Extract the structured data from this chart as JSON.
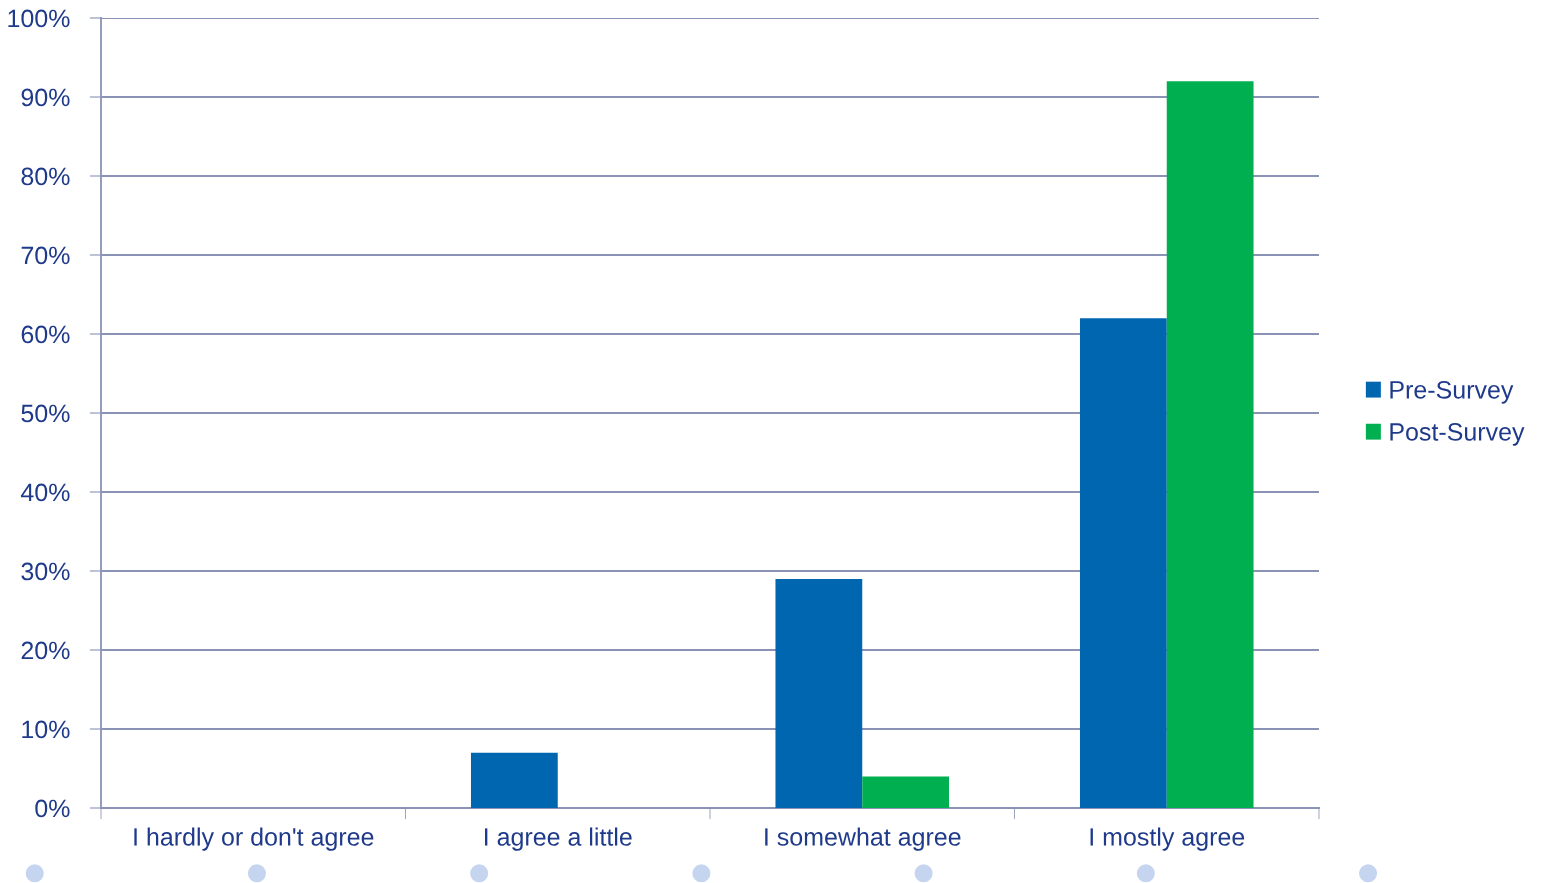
{
  "chart_data": {
    "type": "bar",
    "categories": [
      "I hardly or don't agree",
      "I agree a little",
      "I somewhat agree",
      "I mostly agree"
    ],
    "series": [
      {
        "name": "Pre-Survey",
        "color": "#0066b0",
        "values": [
          0,
          7,
          29,
          62
        ]
      },
      {
        "name": "Post-Survey",
        "color": "#00b050",
        "values": [
          0,
          0,
          4,
          92
        ]
      }
    ],
    "ylim": [
      0,
      100
    ],
    "yticks": [
      {
        "value": 0,
        "label": "0%"
      },
      {
        "value": 10,
        "label": "10%"
      },
      {
        "value": 20,
        "label": "20%"
      },
      {
        "value": 30,
        "label": "30%"
      },
      {
        "value": 40,
        "label": "40%"
      },
      {
        "value": 50,
        "label": "50%"
      },
      {
        "value": 60,
        "label": "60%"
      },
      {
        "value": 70,
        "label": "70%"
      },
      {
        "value": 80,
        "label": "80%"
      },
      {
        "value": 90,
        "label": "90%"
      },
      {
        "value": 100,
        "label": "100%"
      }
    ],
    "grid": "y",
    "legend": "right"
  }
}
